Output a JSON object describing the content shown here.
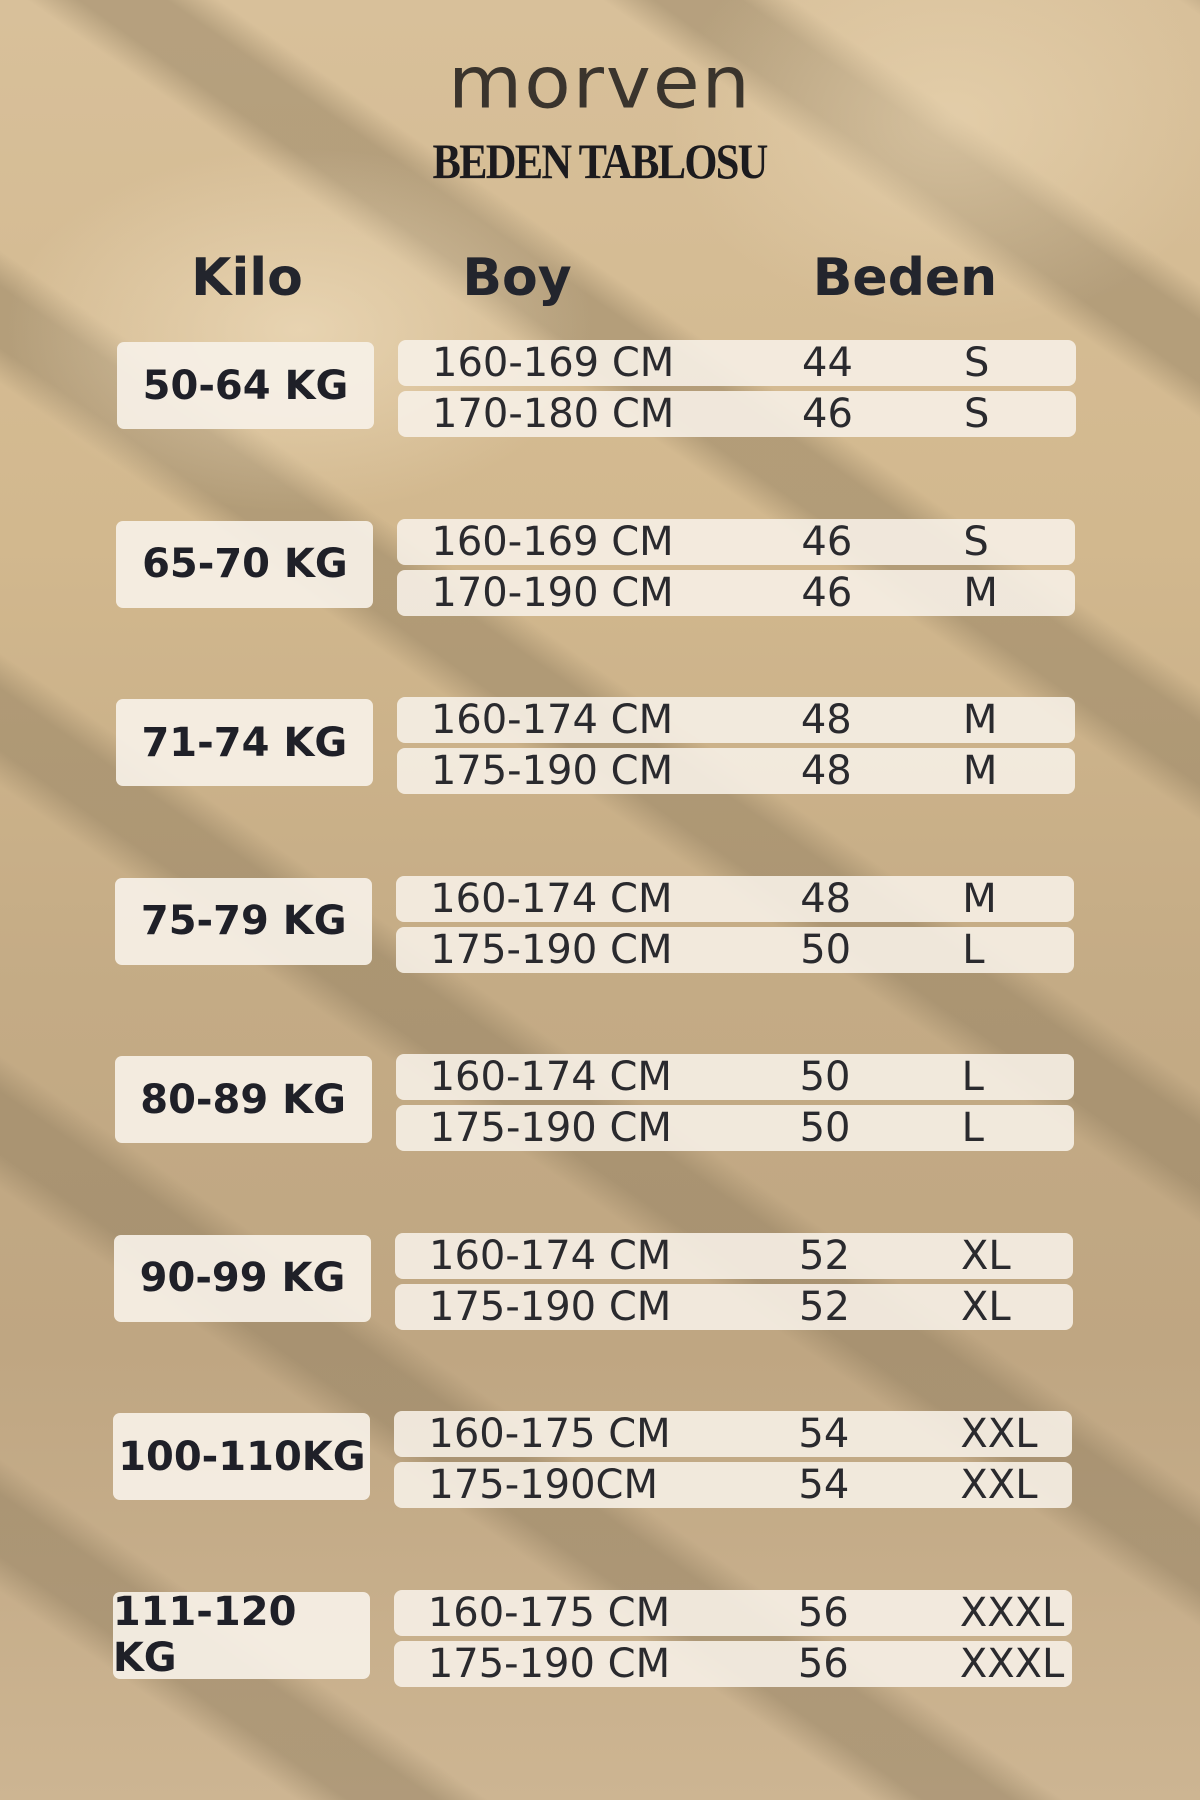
{
  "brand": "morven",
  "title": "BEDEN TABLOSU",
  "headers": {
    "kilo": "Kilo",
    "boy": "Boy",
    "beden": "Beden"
  },
  "groups": [
    {
      "kilo": "50-64 KG",
      "rows": [
        {
          "boy": "160-169 CM",
          "num": "44",
          "size": "S"
        },
        {
          "boy": "170-180 CM",
          "num": "46",
          "size": "S"
        }
      ]
    },
    {
      "kilo": "65-70 KG",
      "rows": [
        {
          "boy": "160-169 CM",
          "num": "46",
          "size": "S"
        },
        {
          "boy": "170-190 CM",
          "num": "46",
          "size": "M"
        }
      ]
    },
    {
      "kilo": "71-74 KG",
      "rows": [
        {
          "boy": "160-174 CM",
          "num": "48",
          "size": "M"
        },
        {
          "boy": "175-190 CM",
          "num": "48",
          "size": "M"
        }
      ]
    },
    {
      "kilo": "75-79 KG",
      "rows": [
        {
          "boy": "160-174 CM",
          "num": "48",
          "size": "M"
        },
        {
          "boy": "175-190 CM",
          "num": "50",
          "size": "L"
        }
      ]
    },
    {
      "kilo": "80-89 KG",
      "rows": [
        {
          "boy": "160-174 CM",
          "num": "50",
          "size": "L"
        },
        {
          "boy": "175-190 CM",
          "num": "50",
          "size": "L"
        }
      ]
    },
    {
      "kilo": "90-99 KG",
      "rows": [
        {
          "boy": "160-174 CM",
          "num": "52",
          "size": "XL"
        },
        {
          "boy": "175-190 CM",
          "num": "52",
          "size": "XL"
        }
      ]
    },
    {
      "kilo": "100-110KG",
      "rows": [
        {
          "boy": "160-175 CM",
          "num": "54",
          "size": "XXL"
        },
        {
          "boy": "175-190CM",
          "num": "54",
          "size": "XXL"
        }
      ]
    },
    {
      "kilo": "111-120 KG",
      "rows": [
        {
          "boy": "160-175 CM",
          "num": "56",
          "size": "XXXL"
        },
        {
          "boy": "175-190 CM",
          "num": "56",
          "size": "XXXL"
        }
      ]
    }
  ]
}
